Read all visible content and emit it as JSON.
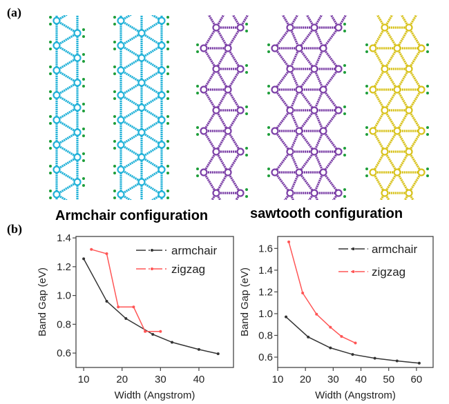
{
  "figure": {
    "panel_a_label": "(a)",
    "panel_b_label": "(b)",
    "armchair_title": "Armchair  configuration",
    "sawtooth_title": "sawtooth configuration"
  },
  "structures": [
    {
      "type": "armchair",
      "width": "narrow",
      "color": "#22b2d8"
    },
    {
      "type": "armchair",
      "width": "wide",
      "color": "#22b2d8"
    },
    {
      "type": "sawtooth",
      "width": "narrow",
      "color": "#7b3fa6"
    },
    {
      "type": "sawtooth",
      "width": "wide",
      "color": "#7b3fa6"
    },
    {
      "type": "sawtooth",
      "width": "wide",
      "color": "#d8c21c"
    }
  ],
  "hydrogen_color": "#1e9e3a",
  "chart_data": [
    {
      "type": "line",
      "title": "Armchair  configuration",
      "xlabel": "Width (Angstrom)",
      "ylabel": "Band Gap (eV)",
      "xlim": [
        8,
        49
      ],
      "ylim": [
        0.5,
        1.41
      ],
      "xticks": [
        10,
        20,
        30,
        40
      ],
      "yticks": [
        0.6,
        0.8,
        1.0,
        1.2,
        1.4
      ],
      "legend_position": "top-right",
      "series": [
        {
          "name": "armchair",
          "color": "#333333",
          "x": [
            10,
            16,
            21,
            28,
            33,
            40,
            45
          ],
          "y": [
            1.255,
            0.96,
            0.84,
            0.73,
            0.675,
            0.625,
            0.595
          ]
        },
        {
          "name": "zigzag",
          "color": "#ff5555",
          "x": [
            12,
            16,
            19,
            23,
            26,
            30
          ],
          "y": [
            1.32,
            1.29,
            0.92,
            0.92,
            0.75,
            0.75
          ]
        }
      ]
    },
    {
      "type": "line",
      "title": "sawtooth configuration",
      "xlabel": "Width (Angstrom)",
      "ylabel": "Band Gap (eV)",
      "xlim": [
        10,
        66
      ],
      "ylim": [
        0.505,
        1.71
      ],
      "xticks": [
        10,
        20,
        30,
        40,
        50,
        60
      ],
      "yticks": [
        0.6,
        0.8,
        1.0,
        1.2,
        1.4,
        1.6
      ],
      "legend_position": "top-right",
      "series": [
        {
          "name": "armchair",
          "color": "#333333",
          "x": [
            13,
            21,
            29,
            37,
            45,
            53,
            61
          ],
          "y": [
            0.97,
            0.785,
            0.685,
            0.625,
            0.59,
            0.565,
            0.545
          ]
        },
        {
          "name": "zigzag",
          "color": "#ff5555",
          "x": [
            14,
            19,
            24,
            29,
            33,
            38
          ],
          "y": [
            1.66,
            1.19,
            0.995,
            0.875,
            0.79,
            0.73
          ]
        }
      ]
    }
  ]
}
